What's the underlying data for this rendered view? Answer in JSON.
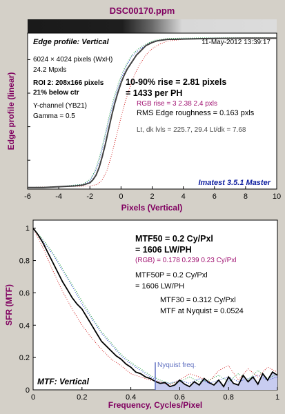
{
  "window": {
    "title": "DSC00170.ppm",
    "title_color": "#800060",
    "background": "#d4d0c8"
  },
  "top_panel": {
    "heading": "Edge profile: Vertical",
    "date": "11-May-2012 13:39:17",
    "info_lines": [
      "6024 × 4024 pixels (WxH)",
      "24.2 Mpxls"
    ],
    "roi_line1": "ROI 2:  208x166 pixels",
    "roi_line2": "21% below ctr",
    "channel_lines": [
      "Y-channel  (YB21)",
      "Gamma = 0.5"
    ],
    "rise_line1": "10-90% rise = 2.81 pixels",
    "rise_line2": "= 1433 per PH",
    "rgb_rise": "RGB rise = 3  2.38  2.4 pxls",
    "roughness": "RMS Edge roughness = 0.163 pxls",
    "levels": "Lt, dk lvls = 225.7, 29.4   Lt/dk = 7.68",
    "version": "Imatest 3.5.1 Master",
    "version_color": "#1020a0",
    "rgb_color": "#a01070"
  },
  "bottom_panel": {
    "heading": "MTF: Vertical",
    "mtf50_line1": "MTF50 = 0.2 Cy/Pxl",
    "mtf50_line2": "= 1606 LW/PH",
    "rgb_mtf50": "(RGB) = 0.178  0.239  0.23 Cy/Pxl",
    "mtf50p_line1": "MTF50P = 0.2 Cy/Pxl",
    "mtf50p_line2": "= 1606 LW/PH",
    "mtf30": "MTF30 = 0.312 Cy/Pxl",
    "mtf_nyquist": "MTF at Nyquist = 0.0524",
    "nyquist_label": "Nyquist freq.",
    "nyquist_color": "#6070c0",
    "fill_color": "#c8ccf0"
  },
  "chart_data": [
    {
      "type": "line",
      "title": "Edge profile: Vertical",
      "xlabel": "Pixels (Vertical)",
      "ylabel": "Edge profile (linear)",
      "xlim": [
        -6,
        10
      ],
      "xticks": [
        -6,
        -4,
        -2,
        0,
        2,
        4,
        6,
        8,
        10
      ],
      "ylim": [
        0,
        1
      ],
      "y_tick_labels": false,
      "grid": false,
      "series": [
        {
          "color": "#404040",
          "x": [
            -6,
            -5,
            -4,
            -3,
            -2.5,
            -2,
            -1.8,
            -1.6,
            -1.4,
            -1.2,
            -1.0,
            -0.8,
            -0.6,
            -0.4,
            -0.2,
            0,
            0.2,
            0.4,
            0.6,
            0.8,
            1.0,
            1.2,
            1.4,
            1.6,
            1.8,
            2.0,
            2.3,
            2.6,
            3,
            3.5,
            4,
            5,
            6,
            7,
            8,
            9,
            10
          ],
          "y": [
            0.01,
            0.01,
            0.015,
            0.02,
            0.025,
            0.04,
            0.06,
            0.09,
            0.14,
            0.21,
            0.29,
            0.38,
            0.47,
            0.55,
            0.62,
            0.68,
            0.73,
            0.77,
            0.8,
            0.83,
            0.86,
            0.88,
            0.9,
            0.92,
            0.93,
            0.94,
            0.95,
            0.955,
            0.96,
            0.96,
            0.962,
            0.964,
            0.966,
            0.967,
            0.968,
            0.968,
            0.968
          ]
        },
        {
          "color": "#d02020",
          "dotted": true,
          "x": [
            -6,
            -4,
            -2,
            -1.5,
            -1.2,
            -0.9,
            -0.6,
            -0.3,
            0,
            0.3,
            0.6,
            0.9,
            1.2,
            1.6,
            2,
            2.5,
            3,
            4,
            6,
            8,
            10
          ],
          "y": [
            0.01,
            0.015,
            0.02,
            0.03,
            0.06,
            0.12,
            0.22,
            0.34,
            0.46,
            0.57,
            0.66,
            0.74,
            0.8,
            0.86,
            0.9,
            0.93,
            0.95,
            0.96,
            0.965,
            0.966,
            0.966
          ]
        },
        {
          "color": "#20a040",
          "dotted": true,
          "x": [
            -6,
            -4,
            -2.5,
            -2,
            -1.7,
            -1.4,
            -1.1,
            -0.8,
            -0.5,
            -0.2,
            0.1,
            0.4,
            0.7,
            1.0,
            1.4,
            1.8,
            2.2,
            3,
            4,
            6,
            8,
            10
          ],
          "y": [
            0.01,
            0.015,
            0.03,
            0.06,
            0.11,
            0.2,
            0.32,
            0.45,
            0.57,
            0.67,
            0.75,
            0.81,
            0.86,
            0.89,
            0.92,
            0.94,
            0.955,
            0.965,
            0.968,
            0.97,
            0.97,
            0.97
          ]
        },
        {
          "color": "#2040d0",
          "dotted": true,
          "x": [
            -6,
            -4,
            -2.5,
            -2,
            -1.7,
            -1.4,
            -1.1,
            -0.8,
            -0.5,
            -0.2,
            0.1,
            0.4,
            0.7,
            1.0,
            1.4,
            1.8,
            2.2,
            3,
            4,
            6,
            8,
            10
          ],
          "y": [
            0.01,
            0.015,
            0.03,
            0.05,
            0.1,
            0.18,
            0.3,
            0.43,
            0.55,
            0.65,
            0.73,
            0.8,
            0.85,
            0.88,
            0.91,
            0.935,
            0.95,
            0.96,
            0.965,
            0.968,
            0.968,
            0.968
          ]
        }
      ]
    },
    {
      "type": "line",
      "title": "MTF: Vertical",
      "xlabel": "Frequency, Cycles/Pixel",
      "ylabel": "SFR (MTF)",
      "xlim": [
        0,
        1
      ],
      "ylim": [
        0,
        1.05
      ],
      "xticks": [
        0,
        0.2,
        0.4,
        0.6,
        0.8,
        1
      ],
      "yticks": [
        0,
        0.2,
        0.4,
        0.6,
        0.8,
        1
      ],
      "nyquist": 0.5,
      "series": [
        {
          "color": "#000000",
          "x": [
            0,
            0.02,
            0.04,
            0.06,
            0.08,
            0.1,
            0.12,
            0.14,
            0.16,
            0.18,
            0.2,
            0.22,
            0.24,
            0.26,
            0.28,
            0.3,
            0.32,
            0.34,
            0.36,
            0.38,
            0.4,
            0.42,
            0.44,
            0.46,
            0.48,
            0.5,
            0.52,
            0.54,
            0.56,
            0.58,
            0.6,
            0.62,
            0.64,
            0.66,
            0.68,
            0.7,
            0.72,
            0.74,
            0.76,
            0.78,
            0.8,
            0.82,
            0.84,
            0.86,
            0.88,
            0.9,
            0.92,
            0.94,
            0.96,
            0.98,
            1.0
          ],
          "y": [
            1.0,
            0.96,
            0.91,
            0.85,
            0.79,
            0.73,
            0.67,
            0.62,
            0.57,
            0.53,
            0.5,
            0.45,
            0.4,
            0.35,
            0.3,
            0.27,
            0.24,
            0.21,
            0.19,
            0.16,
            0.14,
            0.11,
            0.1,
            0.08,
            0.07,
            0.052,
            0.04,
            0.045,
            0.02,
            0.03,
            0.06,
            0.035,
            0.02,
            0.05,
            0.03,
            0.07,
            0.045,
            0.03,
            0.06,
            0.02,
            0.08,
            0.04,
            0.03,
            0.09,
            0.05,
            0.08,
            0.035,
            0.1,
            0.06,
            0.11,
            0.09
          ]
        },
        {
          "color": "#d02020",
          "dotted": true,
          "x": [
            0,
            0.04,
            0.08,
            0.12,
            0.16,
            0.2,
            0.24,
            0.28,
            0.32,
            0.36,
            0.4,
            0.44,
            0.48,
            0.52,
            0.56,
            0.6,
            0.64,
            0.68,
            0.72,
            0.76,
            0.8,
            0.84,
            0.88,
            0.92,
            0.96,
            1.0
          ],
          "y": [
            1.0,
            0.88,
            0.74,
            0.61,
            0.5,
            0.4,
            0.32,
            0.25,
            0.19,
            0.15,
            0.1,
            0.08,
            0.06,
            0.05,
            0.03,
            0.06,
            0.1,
            0.08,
            0.05,
            0.12,
            0.15,
            0.06,
            0.13,
            0.08,
            0.14,
            0.11
          ]
        },
        {
          "color": "#20a040",
          "dotted": true,
          "x": [
            0,
            0.04,
            0.08,
            0.12,
            0.16,
            0.2,
            0.24,
            0.28,
            0.32,
            0.36,
            0.4,
            0.44,
            0.48,
            0.52,
            0.56,
            0.6,
            0.64,
            0.68,
            0.72,
            0.76,
            0.8,
            0.84,
            0.88,
            0.92,
            0.96,
            1.0
          ],
          "y": [
            1.0,
            0.93,
            0.85,
            0.75,
            0.65,
            0.55,
            0.45,
            0.36,
            0.29,
            0.22,
            0.17,
            0.13,
            0.09,
            0.06,
            0.04,
            0.05,
            0.08,
            0.05,
            0.06,
            0.09,
            0.05,
            0.1,
            0.06,
            0.12,
            0.07,
            0.1
          ]
        },
        {
          "color": "#2040d0",
          "dotted": true,
          "x": [
            0,
            0.04,
            0.08,
            0.12,
            0.16,
            0.2,
            0.24,
            0.28,
            0.32,
            0.36,
            0.4,
            0.44,
            0.48,
            0.52,
            0.56,
            0.6,
            0.64,
            0.68,
            0.72,
            0.76,
            0.8,
            0.84,
            0.88,
            0.92,
            0.96,
            1.0
          ],
          "y": [
            1.0,
            0.92,
            0.84,
            0.74,
            0.64,
            0.53,
            0.44,
            0.35,
            0.28,
            0.21,
            0.16,
            0.12,
            0.08,
            0.05,
            0.04,
            0.06,
            0.04,
            0.07,
            0.04,
            0.06,
            0.08,
            0.05,
            0.07,
            0.09,
            0.06,
            0.08
          ]
        }
      ]
    }
  ]
}
